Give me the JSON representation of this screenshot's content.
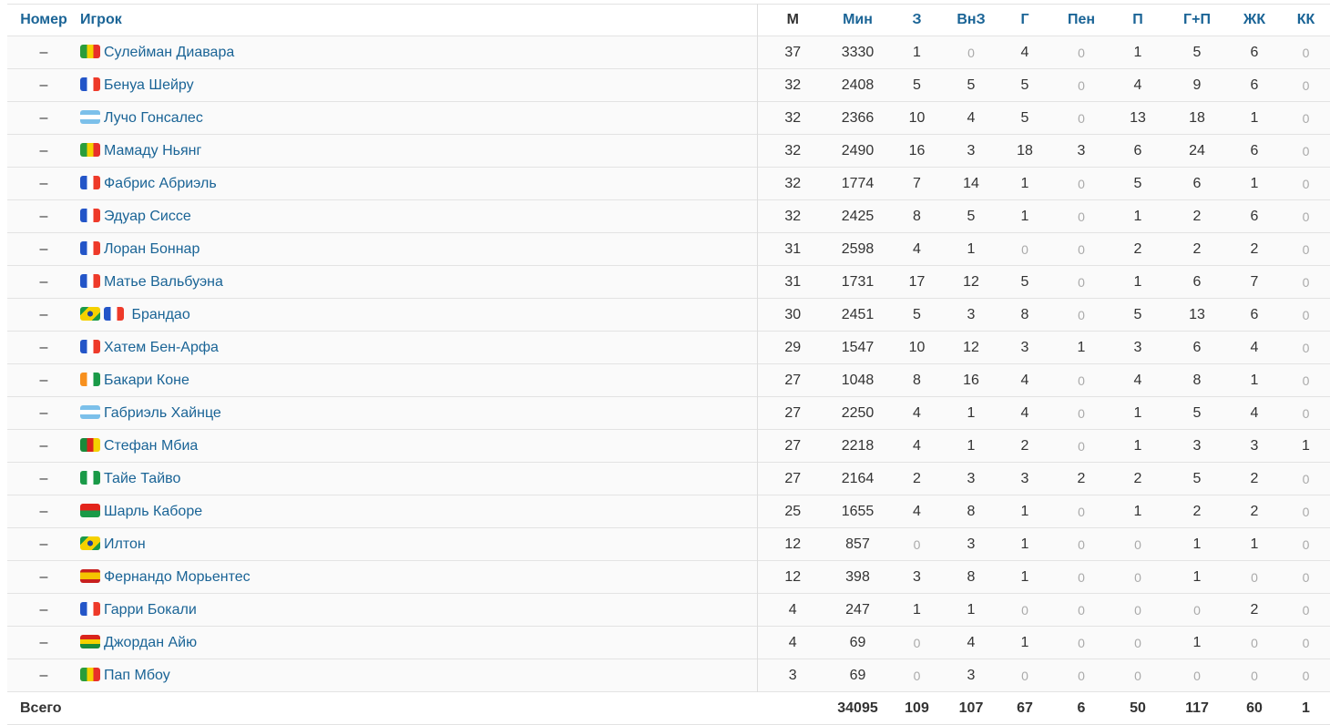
{
  "headers": {
    "number": "Номер",
    "player": "Игрок",
    "m": "М",
    "min": "Мин",
    "z": "З",
    "vnz": "ВнЗ",
    "g": "Г",
    "pen": "Пен",
    "p": "П",
    "gp": "Г+П",
    "zhk": "ЖК",
    "kk": "КК"
  },
  "rows": [
    {
      "num": "–",
      "flags": [
        "senegal"
      ],
      "name": "Сулейман Диавара",
      "stats": [
        37,
        3330,
        1,
        0,
        4,
        0,
        1,
        5,
        6,
        0
      ]
    },
    {
      "num": "–",
      "flags": [
        "france"
      ],
      "name": "Бенуа Шейру",
      "stats": [
        32,
        2408,
        5,
        5,
        5,
        0,
        4,
        9,
        6,
        0
      ]
    },
    {
      "num": "–",
      "flags": [
        "argentina"
      ],
      "name": "Лучо Гонсалес",
      "stats": [
        32,
        2366,
        10,
        4,
        5,
        0,
        13,
        18,
        1,
        0
      ]
    },
    {
      "num": "–",
      "flags": [
        "senegal"
      ],
      "name": "Мамаду Ньянг",
      "stats": [
        32,
        2490,
        16,
        3,
        18,
        3,
        6,
        24,
        6,
        0
      ]
    },
    {
      "num": "–",
      "flags": [
        "france"
      ],
      "name": "Фабрис Абриэль",
      "stats": [
        32,
        1774,
        7,
        14,
        1,
        0,
        5,
        6,
        1,
        0
      ]
    },
    {
      "num": "–",
      "flags": [
        "france"
      ],
      "name": "Эдуар Сиссе",
      "stats": [
        32,
        2425,
        8,
        5,
        1,
        0,
        1,
        2,
        6,
        0
      ]
    },
    {
      "num": "–",
      "flags": [
        "france"
      ],
      "name": "Лоран Боннар",
      "stats": [
        31,
        2598,
        4,
        1,
        0,
        0,
        2,
        2,
        2,
        0
      ]
    },
    {
      "num": "–",
      "flags": [
        "france"
      ],
      "name": "Матье Вальбуэна",
      "stats": [
        31,
        1731,
        17,
        12,
        5,
        0,
        1,
        6,
        7,
        0
      ]
    },
    {
      "num": "–",
      "flags": [
        "brazil",
        "france"
      ],
      "name": "Брандао",
      "stats": [
        30,
        2451,
        5,
        3,
        8,
        0,
        5,
        13,
        6,
        0
      ]
    },
    {
      "num": "–",
      "flags": [
        "france"
      ],
      "name": "Хатем Бен-Арфа",
      "stats": [
        29,
        1547,
        10,
        12,
        3,
        1,
        3,
        6,
        4,
        0
      ]
    },
    {
      "num": "–",
      "flags": [
        "ivory-coast"
      ],
      "name": "Бакари Коне",
      "stats": [
        27,
        1048,
        8,
        16,
        4,
        0,
        4,
        8,
        1,
        0
      ]
    },
    {
      "num": "–",
      "flags": [
        "argentina"
      ],
      "name": "Габриэль Хайнце",
      "stats": [
        27,
        2250,
        4,
        1,
        4,
        0,
        1,
        5,
        4,
        0
      ]
    },
    {
      "num": "–",
      "flags": [
        "cameroon"
      ],
      "name": "Стефан Мбиа",
      "stats": [
        27,
        2218,
        4,
        1,
        2,
        0,
        1,
        3,
        3,
        1
      ]
    },
    {
      "num": "–",
      "flags": [
        "nigeria"
      ],
      "name": "Тайе Тайво",
      "stats": [
        27,
        2164,
        2,
        3,
        3,
        2,
        2,
        5,
        2,
        0
      ]
    },
    {
      "num": "–",
      "flags": [
        "burkina-faso"
      ],
      "name": "Шарль Каборе",
      "stats": [
        25,
        1655,
        4,
        8,
        1,
        0,
        1,
        2,
        2,
        0
      ]
    },
    {
      "num": "–",
      "flags": [
        "brazil"
      ],
      "name": "Илтон",
      "stats": [
        12,
        857,
        0,
        3,
        1,
        0,
        0,
        1,
        1,
        0
      ]
    },
    {
      "num": "–",
      "flags": [
        "spain"
      ],
      "name": "Фернандо Морьентес",
      "stats": [
        12,
        398,
        3,
        8,
        1,
        0,
        0,
        1,
        0,
        0
      ]
    },
    {
      "num": "–",
      "flags": [
        "france"
      ],
      "name": "Гарри Бокали",
      "stats": [
        4,
        247,
        1,
        1,
        0,
        0,
        0,
        0,
        2,
        0
      ]
    },
    {
      "num": "–",
      "flags": [
        "ghana"
      ],
      "name": "Джордан Айю",
      "stats": [
        4,
        69,
        0,
        4,
        1,
        0,
        0,
        1,
        0,
        0
      ]
    },
    {
      "num": "–",
      "flags": [
        "senegal"
      ],
      "name": "Пап Мбоу",
      "stats": [
        3,
        69,
        0,
        3,
        0,
        0,
        0,
        0,
        0,
        0
      ]
    }
  ],
  "total": {
    "label": "Всего",
    "stats": [
      "",
      34095,
      109,
      107,
      67,
      6,
      50,
      117,
      60,
      1
    ]
  }
}
